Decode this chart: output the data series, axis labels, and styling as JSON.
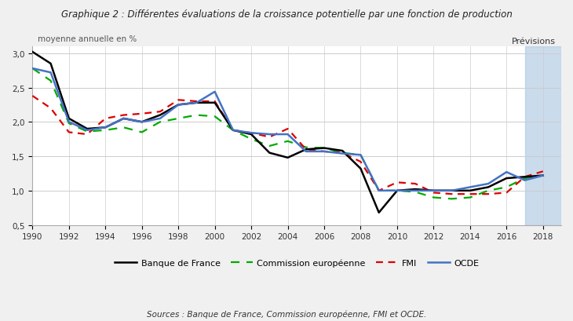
{
  "title": "Graphique 2 : Différentes évaluations de la croissance potentielle par une fonction de production",
  "subtitle": "moyenne annuelle en %",
  "source": "Sources : Banque de France, Commission européenne, FMI et OCDE.",
  "previsions_label": "Prévisions",
  "previsions_start": 2017,
  "previsions_end": 2019,
  "xlim": [
    1990,
    2019
  ],
  "ylim": [
    0.5,
    3.1
  ],
  "yticks": [
    0.5,
    1.0,
    1.5,
    2.0,
    2.5,
    3.0
  ],
  "ytick_labels": [
    "0,5",
    "1,0",
    "1,5",
    "2,0",
    "2,5",
    "3,0"
  ],
  "xticks": [
    1990,
    1992,
    1994,
    1996,
    1998,
    2000,
    2002,
    2004,
    2006,
    2008,
    2010,
    2012,
    2014,
    2016,
    2018
  ],
  "banque_de_france": {
    "label": "Banque de France",
    "color": "#000000",
    "linestyle": "-",
    "linewidth": 1.8,
    "x": [
      1990,
      1991,
      1992,
      1993,
      1994,
      1995,
      1996,
      1997,
      1998,
      1999,
      2000,
      2001,
      2002,
      2003,
      2004,
      2005,
      2006,
      2007,
      2008,
      2009,
      2010,
      2011,
      2012,
      2013,
      2014,
      2015,
      2016,
      2017,
      2018
    ],
    "y": [
      3.02,
      2.85,
      2.05,
      1.9,
      1.92,
      2.05,
      2.0,
      2.1,
      2.25,
      2.28,
      2.28,
      1.88,
      1.82,
      1.55,
      1.48,
      1.6,
      1.62,
      1.58,
      1.32,
      0.68,
      1.0,
      1.02,
      1.0,
      1.0,
      1.0,
      1.05,
      1.18,
      1.2,
      1.22
    ]
  },
  "commission_europeenne": {
    "label": "Commission européenne",
    "color": "#00aa00",
    "linestyle": "--",
    "linewidth": 1.6,
    "x": [
      1990,
      1991,
      1992,
      1993,
      1994,
      1995,
      1996,
      1997,
      1998,
      1999,
      2000,
      2001,
      2002,
      2003,
      2004,
      2005,
      2006,
      2007,
      2008,
      2009,
      2010,
      2011,
      2012,
      2013,
      2014,
      2015,
      2016,
      2017,
      2018
    ],
    "y": [
      2.78,
      2.6,
      1.98,
      1.86,
      1.88,
      1.92,
      1.85,
      2.0,
      2.05,
      2.1,
      2.08,
      1.88,
      1.75,
      1.65,
      1.72,
      1.63,
      1.62,
      1.55,
      1.52,
      1.0,
      1.0,
      0.98,
      0.9,
      0.88,
      0.9,
      1.0,
      1.05,
      1.18,
      1.22
    ]
  },
  "fmi": {
    "label": "FMI",
    "color": "#dd0000",
    "linestyle": "--",
    "linewidth": 1.6,
    "x": [
      1990,
      1991,
      1992,
      1993,
      1994,
      1995,
      1996,
      1997,
      1998,
      1999,
      2000,
      2001,
      2002,
      2003,
      2004,
      2005,
      2006,
      2007,
      2008,
      2009,
      2010,
      2011,
      2012,
      2013,
      2014,
      2015,
      2016,
      2017,
      2018
    ],
    "y": [
      2.38,
      2.2,
      1.85,
      1.82,
      2.05,
      2.1,
      2.12,
      2.15,
      2.32,
      2.3,
      2.3,
      1.88,
      1.84,
      1.78,
      1.9,
      1.6,
      1.57,
      1.55,
      1.42,
      1.0,
      1.12,
      1.1,
      0.97,
      0.95,
      0.95,
      0.95,
      0.97,
      1.2,
      1.28
    ]
  },
  "ocde": {
    "label": "OCDE",
    "color": "#4472c4",
    "linestyle": "-",
    "linewidth": 1.8,
    "x": [
      1990,
      1991,
      1992,
      1993,
      1994,
      1995,
      1996,
      1997,
      1998,
      1999,
      2000,
      2001,
      2002,
      2003,
      2004,
      2005,
      2006,
      2007,
      2008,
      2009,
      2010,
      2011,
      2012,
      2013,
      2014,
      2015,
      2016,
      2017,
      2018
    ],
    "y": [
      2.78,
      2.72,
      2.0,
      1.88,
      1.92,
      2.05,
      2.0,
      2.05,
      2.25,
      2.28,
      2.44,
      1.88,
      1.84,
      1.82,
      1.82,
      1.57,
      1.57,
      1.54,
      1.52,
      1.0,
      1.0,
      1.0,
      1.0,
      1.0,
      1.05,
      1.1,
      1.27,
      1.15,
      1.22
    ]
  },
  "bg_color": "#f0f0f0",
  "plot_bg_color": "#ffffff",
  "previsions_color": "#a8c4e0",
  "previsions_alpha": 0.6,
  "grid_color": "#cccccc"
}
